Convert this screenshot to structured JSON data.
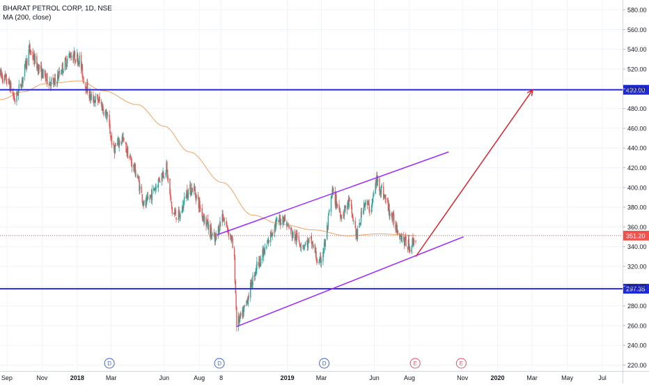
{
  "header": {
    "symbol": "BHARAT PETROL CORP, 1D, NSE",
    "indicator": "MA (200, close)"
  },
  "colors": {
    "up": "#26a69a",
    "down": "#ef5350",
    "ma": "#f4a261",
    "hline": "#2a2ad6",
    "channel": "#9c27ff",
    "arrow": "#e0202a",
    "price_badge": "#ef5350",
    "level_badge": "#1e2ad6",
    "grid": "#f0f3fa",
    "event_dividend": "#3d64d8",
    "event_earnings": "#e05468"
  },
  "chart_data": {
    "type": "candlestick",
    "x_axis": {
      "tick_labels": [
        "Sep",
        "Nov",
        "2018",
        "Mar",
        "Jun",
        "Aug",
        "8",
        "2019",
        "Mar",
        "Jun",
        "Aug",
        "Nov",
        "2020",
        "Mar",
        "May",
        "Jul"
      ],
      "bold_labels": [
        "2018",
        "2019",
        "2020"
      ]
    },
    "y_axis": {
      "tick_labels": [
        "580.00",
        "560.00",
        "540.00",
        "520.00",
        "500.00",
        "480.00",
        "460.00",
        "440.00",
        "420.00",
        "400.00",
        "380.00",
        "360.00",
        "340.00",
        "320.00",
        "300.00",
        "280.00",
        "260.00",
        "240.00",
        "220.00"
      ],
      "range": [
        214,
        590
      ]
    },
    "series": [
      {
        "name": "BHARAT PETROL CORP",
        "kind": "ohlc",
        "anchors": [
          [
            "2017-08-20",
            515
          ],
          [
            "2017-09-05",
            505
          ],
          [
            "2017-09-15",
            488
          ],
          [
            "2017-09-28",
            510
          ],
          [
            "2017-10-10",
            540
          ],
          [
            "2017-10-25",
            522
          ],
          [
            "2017-11-08",
            510
          ],
          [
            "2017-11-22",
            505
          ],
          [
            "2017-12-05",
            520
          ],
          [
            "2017-12-20",
            535
          ],
          [
            "2018-01-05",
            530
          ],
          [
            "2018-01-12",
            510
          ],
          [
            "2018-01-25",
            490
          ],
          [
            "2018-02-08",
            488
          ],
          [
            "2018-02-22",
            472
          ],
          [
            "2018-03-05",
            438
          ],
          [
            "2018-03-20",
            450
          ],
          [
            "2018-04-02",
            430
          ],
          [
            "2018-04-15",
            412
          ],
          [
            "2018-04-28",
            380
          ],
          [
            "2018-05-12",
            395
          ],
          [
            "2018-05-25",
            410
          ],
          [
            "2018-06-05",
            420
          ],
          [
            "2018-06-15",
            375
          ],
          [
            "2018-06-28",
            370
          ],
          [
            "2018-07-10",
            395
          ],
          [
            "2018-07-22",
            400
          ],
          [
            "2018-08-05",
            375
          ],
          [
            "2018-08-18",
            358
          ],
          [
            "2018-08-28",
            345
          ],
          [
            "2018-09-10",
            372
          ],
          [
            "2018-09-26",
            348
          ],
          [
            "2018-10-01",
            325
          ],
          [
            "2018-10-05",
            262
          ],
          [
            "2018-10-15",
            270
          ],
          [
            "2018-10-25",
            290
          ],
          [
            "2018-11-08",
            320
          ],
          [
            "2018-11-25",
            338
          ],
          [
            "2018-12-08",
            360
          ],
          [
            "2018-12-25",
            370
          ],
          [
            "2019-01-10",
            352
          ],
          [
            "2019-01-28",
            342
          ],
          [
            "2019-02-12",
            345
          ],
          [
            "2019-02-25",
            320
          ],
          [
            "2019-03-08",
            345
          ],
          [
            "2019-03-20",
            395
          ],
          [
            "2019-04-05",
            372
          ],
          [
            "2019-04-18",
            385
          ],
          [
            "2019-05-02",
            350
          ],
          [
            "2019-05-14",
            385
          ],
          [
            "2019-05-26",
            378
          ],
          [
            "2019-06-05",
            408
          ],
          [
            "2019-06-18",
            392
          ],
          [
            "2019-07-01",
            370
          ],
          [
            "2019-07-14",
            355
          ],
          [
            "2019-07-24",
            345
          ],
          [
            "2019-08-02",
            340
          ],
          [
            "2019-08-12",
            350
          ]
        ]
      },
      {
        "name": "MA (200, close)",
        "kind": "line",
        "points": [
          [
            "2017-08-20",
            489
          ],
          [
            "2017-09-30",
            497
          ],
          [
            "2017-11-05",
            505
          ],
          [
            "2018-01-05",
            508
          ],
          [
            "2018-02-15",
            498
          ],
          [
            "2018-04-15",
            484
          ],
          [
            "2018-06-01",
            462
          ],
          [
            "2018-07-15",
            436
          ],
          [
            "2018-09-10",
            405
          ],
          [
            "2018-11-01",
            372
          ],
          [
            "2018-12-20",
            363
          ],
          [
            "2019-02-15",
            357
          ],
          [
            "2019-04-15",
            351
          ],
          [
            "2019-06-10",
            353
          ],
          [
            "2019-07-20",
            352
          ],
          [
            "2019-08-12",
            351
          ]
        ]
      }
    ],
    "horizontal_lines": [
      {
        "price": 499.0,
        "label": "499.00"
      },
      {
        "price": 297.35,
        "label": "297.35"
      }
    ],
    "current_price": {
      "price": 351.2,
      "label": "351.20"
    },
    "trend_lines": [
      {
        "kind": "channel-upper",
        "from": [
          "2018-09-01",
          352
        ],
        "to": [
          "2019-10-08",
          436
        ]
      },
      {
        "kind": "channel-lower",
        "from": [
          "2018-10-05",
          259
        ],
        "to": [
          "2019-11-03",
          350
        ]
      },
      {
        "kind": "projection-arrow",
        "from": [
          "2019-08-12",
          330
        ],
        "to": [
          "2020-03-02",
          499
        ]
      }
    ],
    "events": [
      {
        "type": "dividend",
        "label": "D",
        "date": "2018-02-26"
      },
      {
        "type": "dividend",
        "label": "D",
        "date": "2018-09-05"
      },
      {
        "type": "dividend",
        "label": "D",
        "date": "2019-03-06"
      },
      {
        "type": "earnings",
        "label": "E",
        "date": "2019-08-11"
      },
      {
        "type": "earnings",
        "label": "E",
        "date": "2019-10-30"
      }
    ]
  }
}
